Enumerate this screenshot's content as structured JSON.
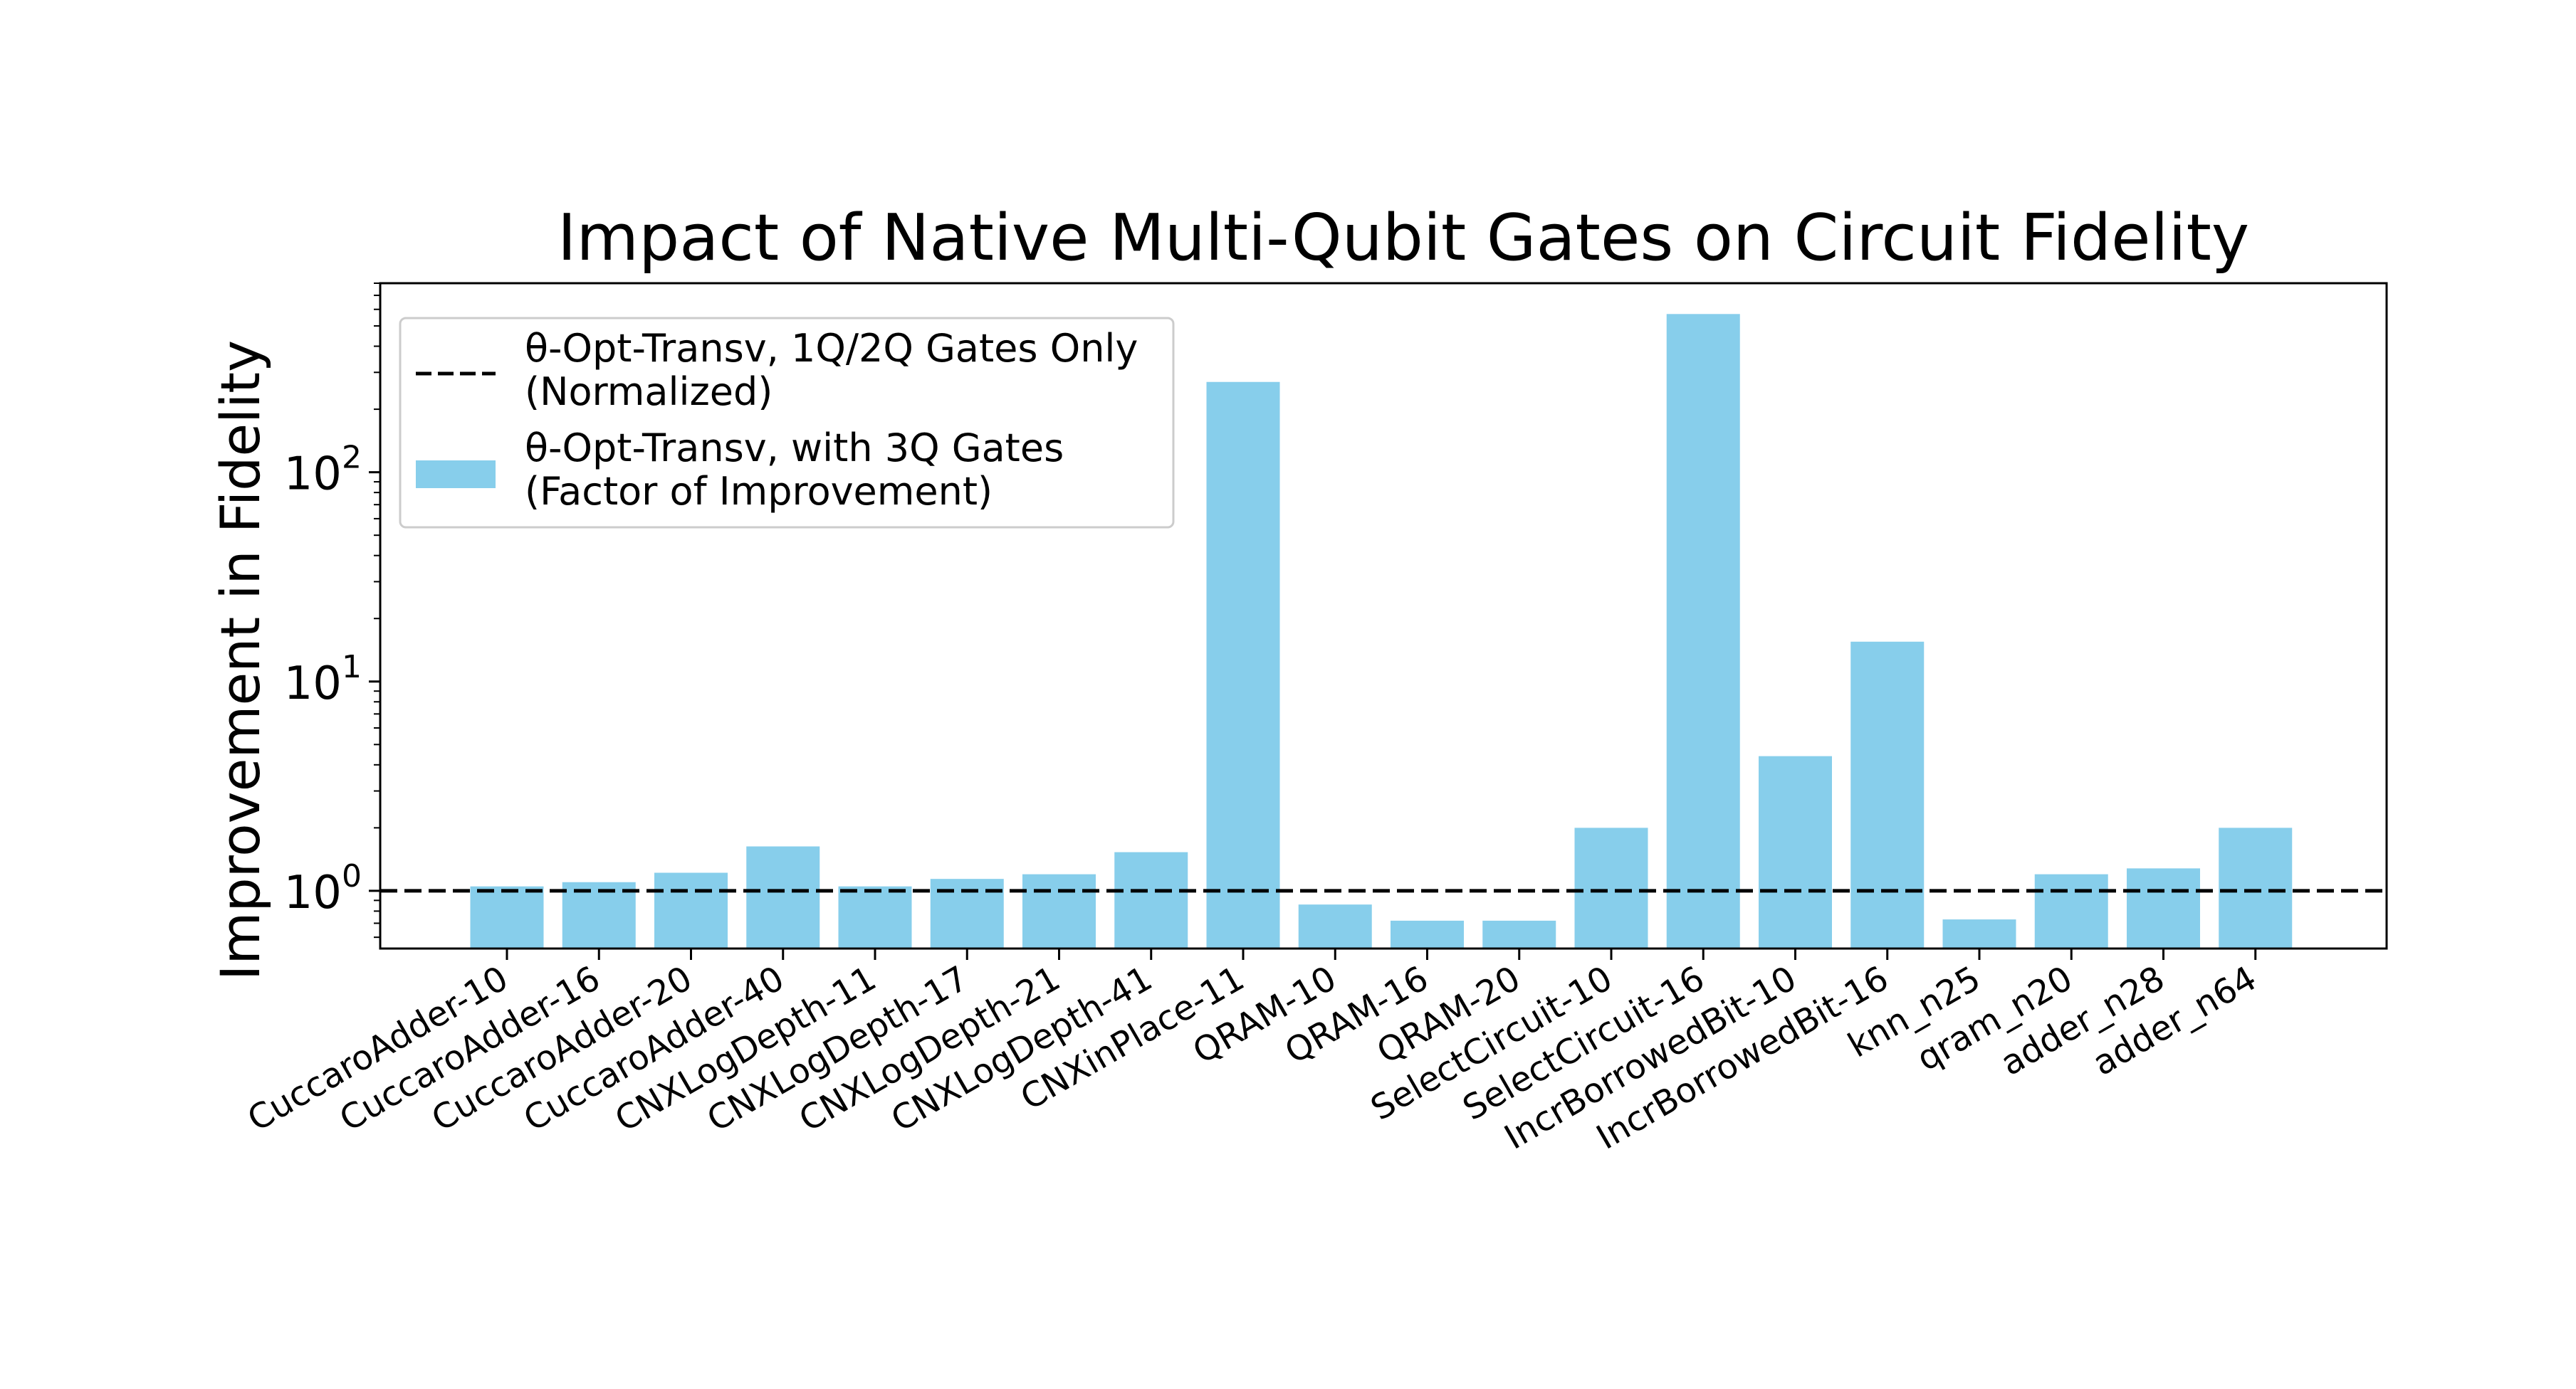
{
  "chart_data": {
    "type": "bar",
    "title": "Impact of Native Multi-Qubit Gates on Circuit Fidelity",
    "xlabel": "",
    "ylabel": "Improvement in Fidelity",
    "yscale": "log",
    "ylim": [
      0.53,
      800
    ],
    "yticks": [
      {
        "value": 1,
        "base": "10",
        "exp": "0"
      },
      {
        "value": 10,
        "base": "10",
        "exp": "1"
      },
      {
        "value": 100,
        "base": "10",
        "exp": "2"
      }
    ],
    "categories": [
      "CuccaroAdder-10",
      "CuccaroAdder-16",
      "CuccaroAdder-20",
      "CuccaroAdder-40",
      "CNXLogDepth-11",
      "CNXLogDepth-17",
      "CNXLogDepth-21",
      "CNXLogDepth-41",
      "CNXinPlace-11",
      "QRAM-10",
      "QRAM-16",
      "QRAM-20",
      "SelectCircuit-10",
      "SelectCircuit-16",
      "IncrBorrowedBit-10",
      "IncrBorrowedBit-16",
      "knn_n25",
      "qram_n20",
      "adder_n28",
      "adder_n64"
    ],
    "series": [
      {
        "name": "θ-Opt-Transv, with 3Q Gates (Factor of Improvement)",
        "color": "#87ceeb",
        "values": [
          1.05,
          1.1,
          1.22,
          1.63,
          1.05,
          1.14,
          1.2,
          1.53,
          270,
          0.86,
          0.72,
          0.72,
          2.0,
          570,
          4.4,
          15.5,
          0.73,
          1.2,
          1.28,
          2.0
        ]
      }
    ],
    "reference_line": {
      "name": "θ-Opt-Transv, 1Q/2Q Gates Only (Normalized)",
      "value": 1,
      "style": "dashed",
      "color": "#000000"
    },
    "legend": {
      "position": "top-left",
      "entries": [
        {
          "line1": "θ-Opt-Transv, 1Q/2Q Gates Only",
          "line2": "(Normalized)",
          "kind": "dashed-line"
        },
        {
          "line1": "θ-Opt-Transv, with 3Q Gates",
          "line2": "(Factor of Improvement)",
          "kind": "patch"
        }
      ]
    },
    "grid": false
  }
}
